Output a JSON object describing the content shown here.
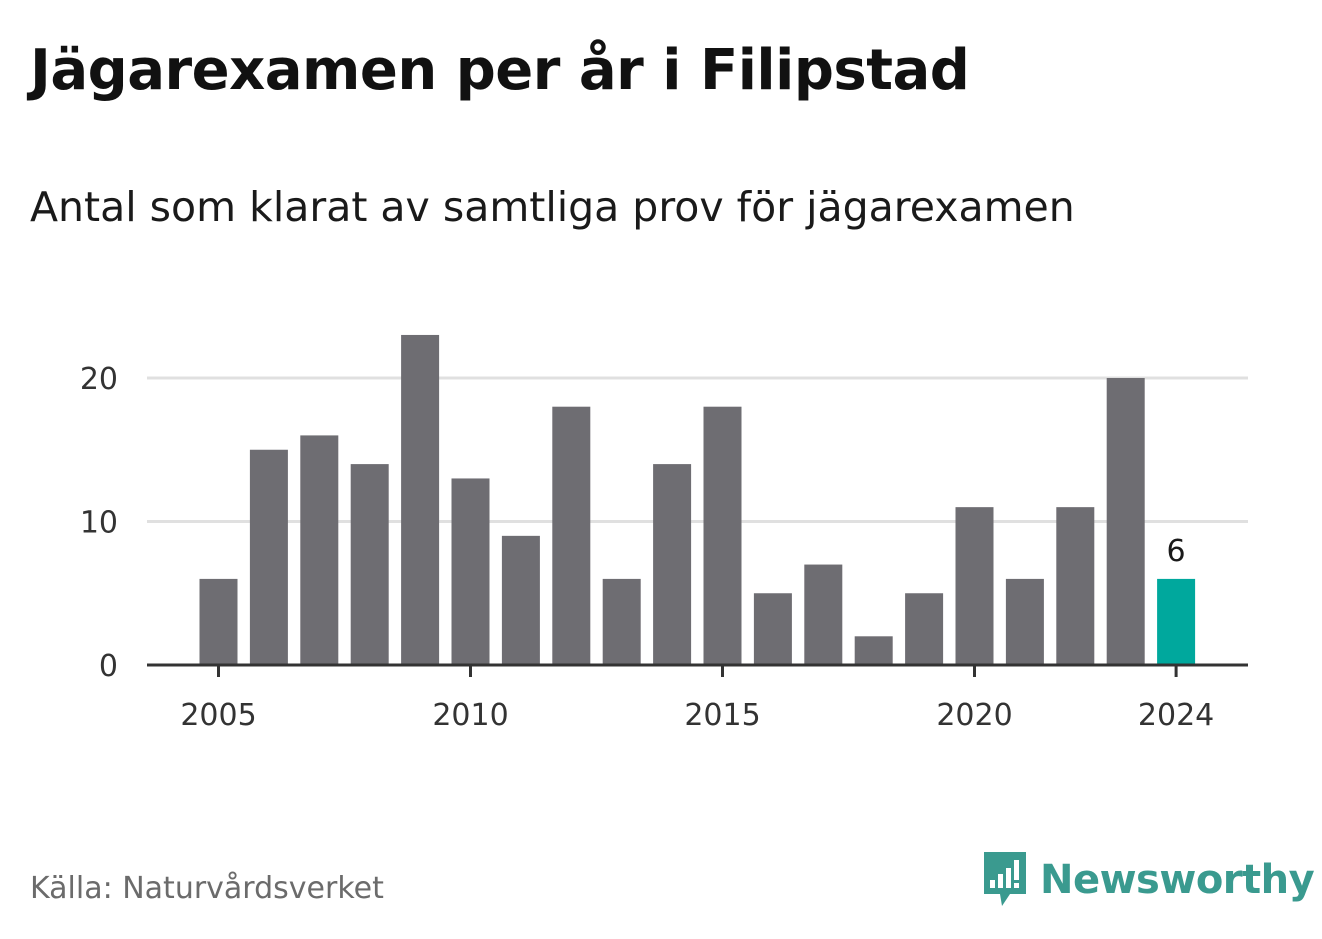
{
  "header": {
    "title": "Jägarexamen per år i Filipstad",
    "subtitle": "Antal som klarat av samtliga prov för jägarexamen"
  },
  "footer": {
    "source": "Källa: Naturvårdsverket",
    "logo_text": "Newsworthy"
  },
  "colors": {
    "bar": "#6e6d72",
    "highlight": "#00a89d",
    "grid": "#e0e0e0",
    "axis": "#333333",
    "logo": "#3a9a8f"
  },
  "chart_data": {
    "type": "bar",
    "title": "Jägarexamen per år i Filipstad",
    "subtitle": "Antal som klarat av samtliga prov för jägarexamen",
    "x": [
      2005,
      2006,
      2007,
      2008,
      2009,
      2010,
      2011,
      2012,
      2013,
      2014,
      2015,
      2016,
      2017,
      2018,
      2019,
      2020,
      2021,
      2022,
      2023,
      2024
    ],
    "values": [
      6,
      15,
      16,
      14,
      23,
      13,
      9,
      18,
      6,
      14,
      18,
      5,
      7,
      2,
      5,
      11,
      6,
      11,
      20,
      6
    ],
    "x_ticks": [
      2005,
      2010,
      2015,
      2020,
      2024
    ],
    "y_ticks": [
      0,
      10,
      20
    ],
    "ylim": [
      0,
      23
    ],
    "highlight": {
      "x": 2024,
      "label": "6"
    },
    "grid": true,
    "legend": "none"
  }
}
